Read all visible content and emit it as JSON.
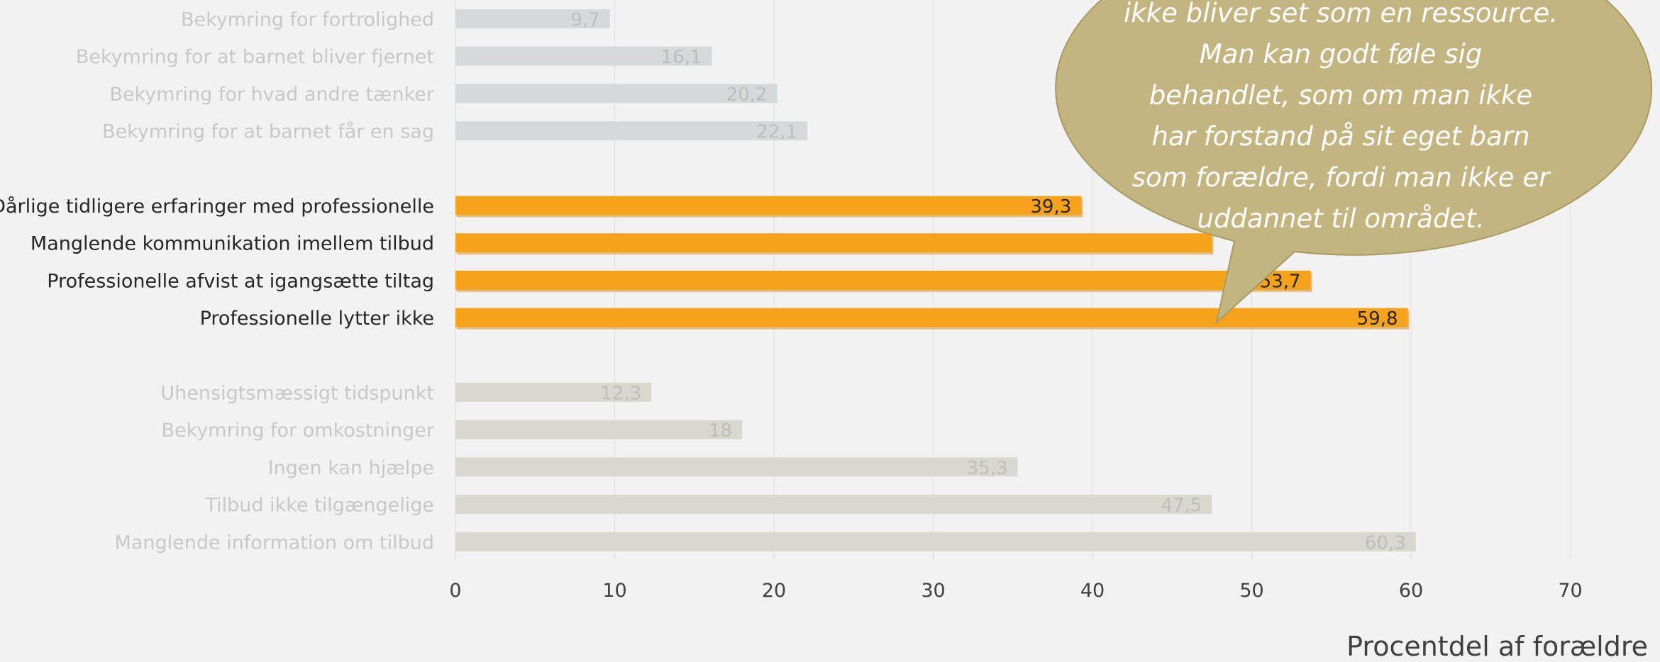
{
  "chart_data": {
    "type": "bar",
    "orientation": "horizontal",
    "xlabel": "Procentdel af forældre",
    "xlim": [
      0,
      70
    ],
    "x_ticks": [
      "0",
      "10",
      "20",
      "30",
      "40",
      "50",
      "60",
      "70"
    ],
    "grid": true,
    "groups": [
      {
        "highlight": false,
        "bar_color": "#d6d9da",
        "categories": [
          "Bekymring for fortrolighed",
          "Bekymring for at barnet bliver fjernet",
          "Bekymring for hvad andre tænker",
          "Bekymring for at barnet får en sag"
        ],
        "values": [
          9.7,
          16.1,
          20.2,
          22.1
        ],
        "value_labels": [
          "9,7",
          "16,1",
          "20,2",
          "22,1"
        ]
      },
      {
        "highlight": true,
        "bar_color": "#f7a21b",
        "categories": [
          "Dårlige tidligere erfaringer med professionelle",
          "Manglende kommunikation imellem tilbud",
          "Professionelle afvist at igangsætte tiltag",
          "Professionelle lytter ikke"
        ],
        "values": [
          39.3,
          47.5,
          53.7,
          59.8
        ],
        "value_labels": [
          "39,3",
          "",
          "53,7",
          "59,8"
        ]
      },
      {
        "highlight": false,
        "bar_color": "#d8d8cf",
        "categories": [
          "Uhensigtsmæssigt tidspunkt",
          "Bekymring for omkostninger",
          "Ingen kan hjælpe",
          "Tilbud ikke tilgængelige",
          "Manglende information om tilbud"
        ],
        "values": [
          12.3,
          18,
          35.3,
          47.5,
          60.3
        ],
        "value_labels": [
          "12,3",
          "18",
          "35,3",
          "47,5",
          "60,3"
        ]
      }
    ]
  },
  "callout": {
    "lines": [
      "ikke bliver set som en ressource.",
      "Man kan godt føle sig",
      "behandlet, som om man ikke",
      "har forstand på sit eget barn",
      "som forældre, fordi man ikke er",
      "uddannet til området."
    ],
    "color": "#c2b57f",
    "border_color": "#a89a60"
  },
  "colors": {
    "background": "#f2f2f2",
    "faded_text": "#c8c8c8",
    "strong_text": "#262626",
    "axis_text": "#404040",
    "highlight_bar": "#f7a21b"
  }
}
